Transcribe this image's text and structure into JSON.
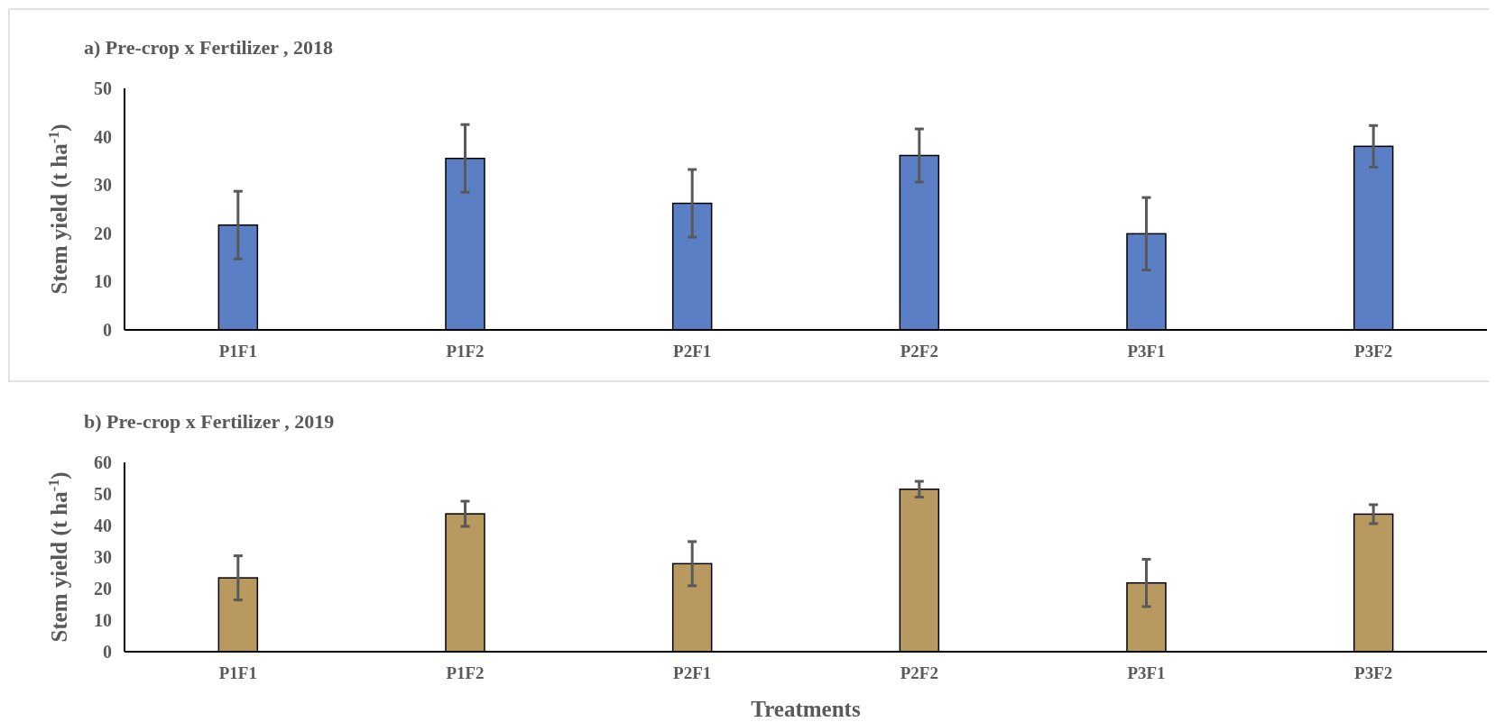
{
  "chart_data": [
    {
      "type": "bar",
      "title": "a) Pre-crop x Fertilizer , 2018",
      "ylabel": "Stem yield (t ha$^{-1}$)",
      "categories": [
        "P1F1",
        "P1F2",
        "P2F1",
        "P2F2",
        "P3F1",
        "P3F2"
      ],
      "values": [
        21.7,
        35.5,
        26.2,
        36.1,
        19.9,
        38.0
      ],
      "errors": [
        7,
        7,
        7,
        5.5,
        7.5,
        4.3
      ],
      "color": "#5b7fc4",
      "ylim": [
        0,
        50
      ],
      "yticks": [
        0,
        10,
        20,
        30,
        40,
        50
      ]
    },
    {
      "type": "bar",
      "title": "b) Pre-crop x Fertilizer , 2019",
      "ylabel": "Stem yield (t ha$^{-1}$)",
      "xlabel": "Treatments",
      "categories": [
        "P1F1",
        "P1F2",
        "P2F1",
        "P2F2",
        "P3F1",
        "P3F2"
      ],
      "values": [
        23.4,
        43.7,
        27.9,
        51.5,
        21.8,
        43.6
      ],
      "errors": [
        7,
        4,
        7,
        2.5,
        7.5,
        3
      ],
      "color": "#b89a60",
      "ylim": [
        0,
        60
      ],
      "yticks": [
        0,
        10,
        20,
        30,
        40,
        50,
        60
      ]
    }
  ]
}
